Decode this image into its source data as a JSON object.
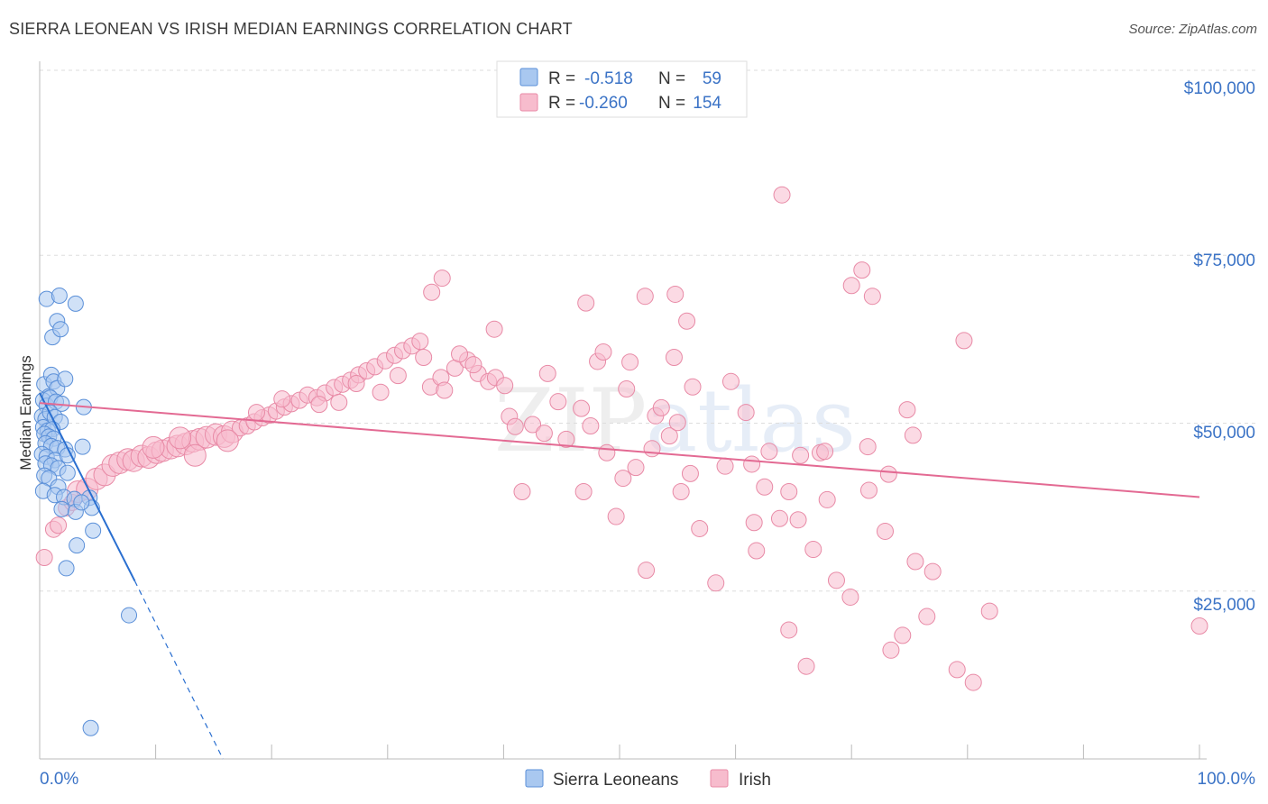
{
  "header": {
    "title": "SIERRA LEONEAN VS IRISH MEDIAN EARNINGS CORRELATION CHART",
    "source": "Source: ZipAtlas.com"
  },
  "colors": {
    "blue_fill": "#a9c8f0",
    "blue_stroke": "#5a8fd8",
    "blue_line": "#2a6fd0",
    "pink_fill": "#f7bccd",
    "pink_stroke": "#e88aa6",
    "pink_line": "#e36a93",
    "tick_text": "#3b73c6",
    "grid": "#dddddd"
  },
  "stats": [
    {
      "label_r": "R =",
      "r": "-0.518",
      "label_n": "N =",
      "n": "59"
    },
    {
      "label_r": "R =",
      "r": "-0.260",
      "label_n": "N =",
      "n": "154"
    }
  ],
  "watermark": {
    "zip": "ZIP",
    "atlas": "atlas"
  },
  "chart_data": {
    "type": "scatter",
    "title": "SIERRA LEONEAN VS IRISH MEDIAN EARNINGS CORRELATION CHART",
    "ylabel": "Median Earnings",
    "xlabel": "",
    "xlim": [
      0,
      100
    ],
    "ylim": [
      0,
      105000
    ],
    "x_tick_labels": [
      "0.0%",
      "100.0%"
    ],
    "y_ticks": [
      25000,
      50000,
      75000,
      100000
    ],
    "y_tick_labels": [
      "$25,000",
      "$50,000",
      "$75,000",
      "$100,000"
    ],
    "grid": "horizontal dashed",
    "legend_position": "bottom-center",
    "series": [
      {
        "name": "Sierra Leoneans",
        "r": -0.518,
        "n": 59,
        "trend": {
          "x0": 0.0,
          "y0": 54500,
          "x1": 8.2,
          "y1": 26500,
          "dashed_to_x": 15.8,
          "dashed_to_y": 0
        },
        "points": [
          [
            0.6,
            68500
          ],
          [
            1.1,
            62800
          ],
          [
            1.5,
            65200
          ],
          [
            1.7,
            69000
          ],
          [
            1.8,
            64000
          ],
          [
            3.1,
            67800
          ],
          [
            0.4,
            55800
          ],
          [
            0.8,
            54000
          ],
          [
            1.0,
            57200
          ],
          [
            1.2,
            56200
          ],
          [
            1.5,
            55200
          ],
          [
            2.2,
            56600
          ],
          [
            0.3,
            53400
          ],
          [
            0.6,
            52600
          ],
          [
            0.9,
            53800
          ],
          [
            1.4,
            53200
          ],
          [
            1.9,
            52900
          ],
          [
            3.8,
            52400
          ],
          [
            0.2,
            51000
          ],
          [
            0.5,
            50600
          ],
          [
            0.9,
            51600
          ],
          [
            1.3,
            50900
          ],
          [
            1.8,
            50200
          ],
          [
            0.3,
            49400
          ],
          [
            0.7,
            48900
          ],
          [
            1.1,
            49100
          ],
          [
            0.4,
            48400
          ],
          [
            0.8,
            48000
          ],
          [
            1.2,
            47700
          ],
          [
            0.5,
            47000
          ],
          [
            1.0,
            46600
          ],
          [
            1.5,
            46300
          ],
          [
            2.2,
            46100
          ],
          [
            3.7,
            46500
          ],
          [
            0.2,
            45400
          ],
          [
            0.6,
            45000
          ],
          [
            1.3,
            44500
          ],
          [
            2.4,
            45200
          ],
          [
            0.5,
            44000
          ],
          [
            1.0,
            43700
          ],
          [
            1.6,
            43300
          ],
          [
            2.4,
            42600
          ],
          [
            0.4,
            42200
          ],
          [
            0.8,
            41800
          ],
          [
            1.6,
            40500
          ],
          [
            0.3,
            39900
          ],
          [
            1.3,
            39300
          ],
          [
            2.1,
            39000
          ],
          [
            3.0,
            38700
          ],
          [
            4.3,
            38900
          ],
          [
            1.9,
            37200
          ],
          [
            3.1,
            36800
          ],
          [
            4.5,
            37400
          ],
          [
            4.6,
            34000
          ],
          [
            3.2,
            31800
          ],
          [
            2.3,
            28400
          ],
          [
            7.7,
            21400
          ],
          [
            4.4,
            4600
          ],
          [
            3.6,
            38200
          ]
        ]
      },
      {
        "name": "Irish",
        "r": -0.26,
        "n": 154,
        "trend": {
          "x0": 0.0,
          "y0": 53000,
          "x1": 100.0,
          "y1": 39000
        },
        "points": [
          [
            0.4,
            30000
          ],
          [
            1.2,
            34200
          ],
          [
            1.6,
            34800
          ],
          [
            2.3,
            37400
          ],
          [
            2.8,
            38200
          ],
          [
            3.3,
            39800
          ],
          [
            4.1,
            40200
          ],
          [
            4.9,
            41700
          ],
          [
            5.6,
            42300
          ],
          [
            6.3,
            43700
          ],
          [
            6.9,
            44100
          ],
          [
            7.6,
            44600
          ],
          [
            8.1,
            44400
          ],
          [
            8.8,
            45100
          ],
          [
            9.4,
            44900
          ],
          [
            10.1,
            45600
          ],
          [
            10.6,
            45900
          ],
          [
            11.3,
            46300
          ],
          [
            11.9,
            46600
          ],
          [
            12.6,
            46900
          ],
          [
            13.2,
            47300
          ],
          [
            13.8,
            47600
          ],
          [
            14.4,
            47900
          ],
          [
            15.2,
            48300
          ],
          [
            15.9,
            48000
          ],
          [
            16.6,
            48700
          ],
          [
            17.3,
            49300
          ],
          [
            17.9,
            49600
          ],
          [
            18.5,
            50200
          ],
          [
            19.2,
            50800
          ],
          [
            19.8,
            51200
          ],
          [
            20.4,
            51800
          ],
          [
            21.1,
            52400
          ],
          [
            21.7,
            52900
          ],
          [
            22.4,
            53400
          ],
          [
            23.1,
            54200
          ],
          [
            23.9,
            53800
          ],
          [
            24.6,
            54500
          ],
          [
            25.4,
            55300
          ],
          [
            26.1,
            55800
          ],
          [
            26.8,
            56400
          ],
          [
            27.5,
            57200
          ],
          [
            28.2,
            57800
          ],
          [
            28.9,
            58400
          ],
          [
            29.8,
            59300
          ],
          [
            30.6,
            60100
          ],
          [
            31.3,
            60800
          ],
          [
            32.1,
            61500
          ],
          [
            32.8,
            62200
          ],
          [
            33.7,
            55400
          ],
          [
            34.6,
            56800
          ],
          [
            35.8,
            58200
          ],
          [
            36.9,
            59400
          ],
          [
            37.8,
            57400
          ],
          [
            38.7,
            56200
          ],
          [
            13.4,
            45200
          ],
          [
            9.8,
            46400
          ],
          [
            12.1,
            47800
          ],
          [
            16.2,
            47400
          ],
          [
            18.7,
            51600
          ],
          [
            20.9,
            53600
          ],
          [
            24.1,
            52800
          ],
          [
            25.8,
            53100
          ],
          [
            27.3,
            55900
          ],
          [
            29.4,
            54600
          ],
          [
            30.9,
            57100
          ],
          [
            33.1,
            59800
          ],
          [
            34.9,
            54900
          ],
          [
            36.2,
            60300
          ],
          [
            37.4,
            58700
          ],
          [
            39.3,
            56800
          ],
          [
            40.1,
            55600
          ],
          [
            39.2,
            64000
          ],
          [
            40.5,
            51000
          ],
          [
            41.0,
            49500
          ],
          [
            41.6,
            39800
          ],
          [
            42.5,
            49800
          ],
          [
            43.5,
            48500
          ],
          [
            43.8,
            57400
          ],
          [
            44.7,
            53200
          ],
          [
            45.4,
            47600
          ],
          [
            46.7,
            52200
          ],
          [
            46.9,
            39800
          ],
          [
            47.5,
            49600
          ],
          [
            48.1,
            59200
          ],
          [
            48.6,
            60600
          ],
          [
            48.9,
            45600
          ],
          [
            49.7,
            36100
          ],
          [
            50.3,
            41800
          ],
          [
            50.6,
            55100
          ],
          [
            50.9,
            59100
          ],
          [
            51.4,
            43400
          ],
          [
            52.3,
            28100
          ],
          [
            52.8,
            46200
          ],
          [
            53.1,
            51100
          ],
          [
            53.6,
            52300
          ],
          [
            54.3,
            48100
          ],
          [
            54.7,
            59800
          ],
          [
            55.0,
            50100
          ],
          [
            55.3,
            39800
          ],
          [
            55.8,
            65200
          ],
          [
            56.1,
            42500
          ],
          [
            56.9,
            34300
          ],
          [
            56.3,
            55400
          ],
          [
            58.3,
            26200
          ],
          [
            59.1,
            43600
          ],
          [
            59.6,
            56200
          ],
          [
            60.9,
            51600
          ],
          [
            61.4,
            43900
          ],
          [
            61.8,
            31000
          ],
          [
            61.6,
            35200
          ],
          [
            62.5,
            40500
          ],
          [
            62.9,
            45800
          ],
          [
            63.8,
            35800
          ],
          [
            64.6,
            39800
          ],
          [
            64.6,
            19200
          ],
          [
            65.6,
            45200
          ],
          [
            65.4,
            35600
          ],
          [
            66.1,
            13800
          ],
          [
            66.7,
            31200
          ],
          [
            67.3,
            45600
          ],
          [
            67.9,
            38600
          ],
          [
            68.7,
            26600
          ],
          [
            69.9,
            24100
          ],
          [
            71.4,
            46500
          ],
          [
            71.5,
            40000
          ],
          [
            72.9,
            33900
          ],
          [
            73.2,
            42400
          ],
          [
            73.4,
            16200
          ],
          [
            74.4,
            18400
          ],
          [
            74.8,
            52000
          ],
          [
            75.3,
            48200
          ],
          [
            75.5,
            29400
          ],
          [
            76.5,
            21200
          ],
          [
            77.0,
            27900
          ],
          [
            79.1,
            13300
          ],
          [
            80.5,
            11400
          ],
          [
            81.9,
            22000
          ],
          [
            67.7,
            45800
          ],
          [
            70.0,
            70500
          ],
          [
            70.9,
            72800
          ],
          [
            71.8,
            68900
          ],
          [
            47.1,
            67900
          ],
          [
            52.2,
            68900
          ],
          [
            54.8,
            69200
          ],
          [
            64.0,
            84000
          ],
          [
            33.8,
            69500
          ],
          [
            34.7,
            71600
          ],
          [
            79.7,
            62300
          ],
          [
            100.0,
            19800
          ]
        ]
      }
    ]
  },
  "legend": {
    "items": [
      {
        "label": "Sierra Leoneans"
      },
      {
        "label": "Irish"
      }
    ]
  }
}
